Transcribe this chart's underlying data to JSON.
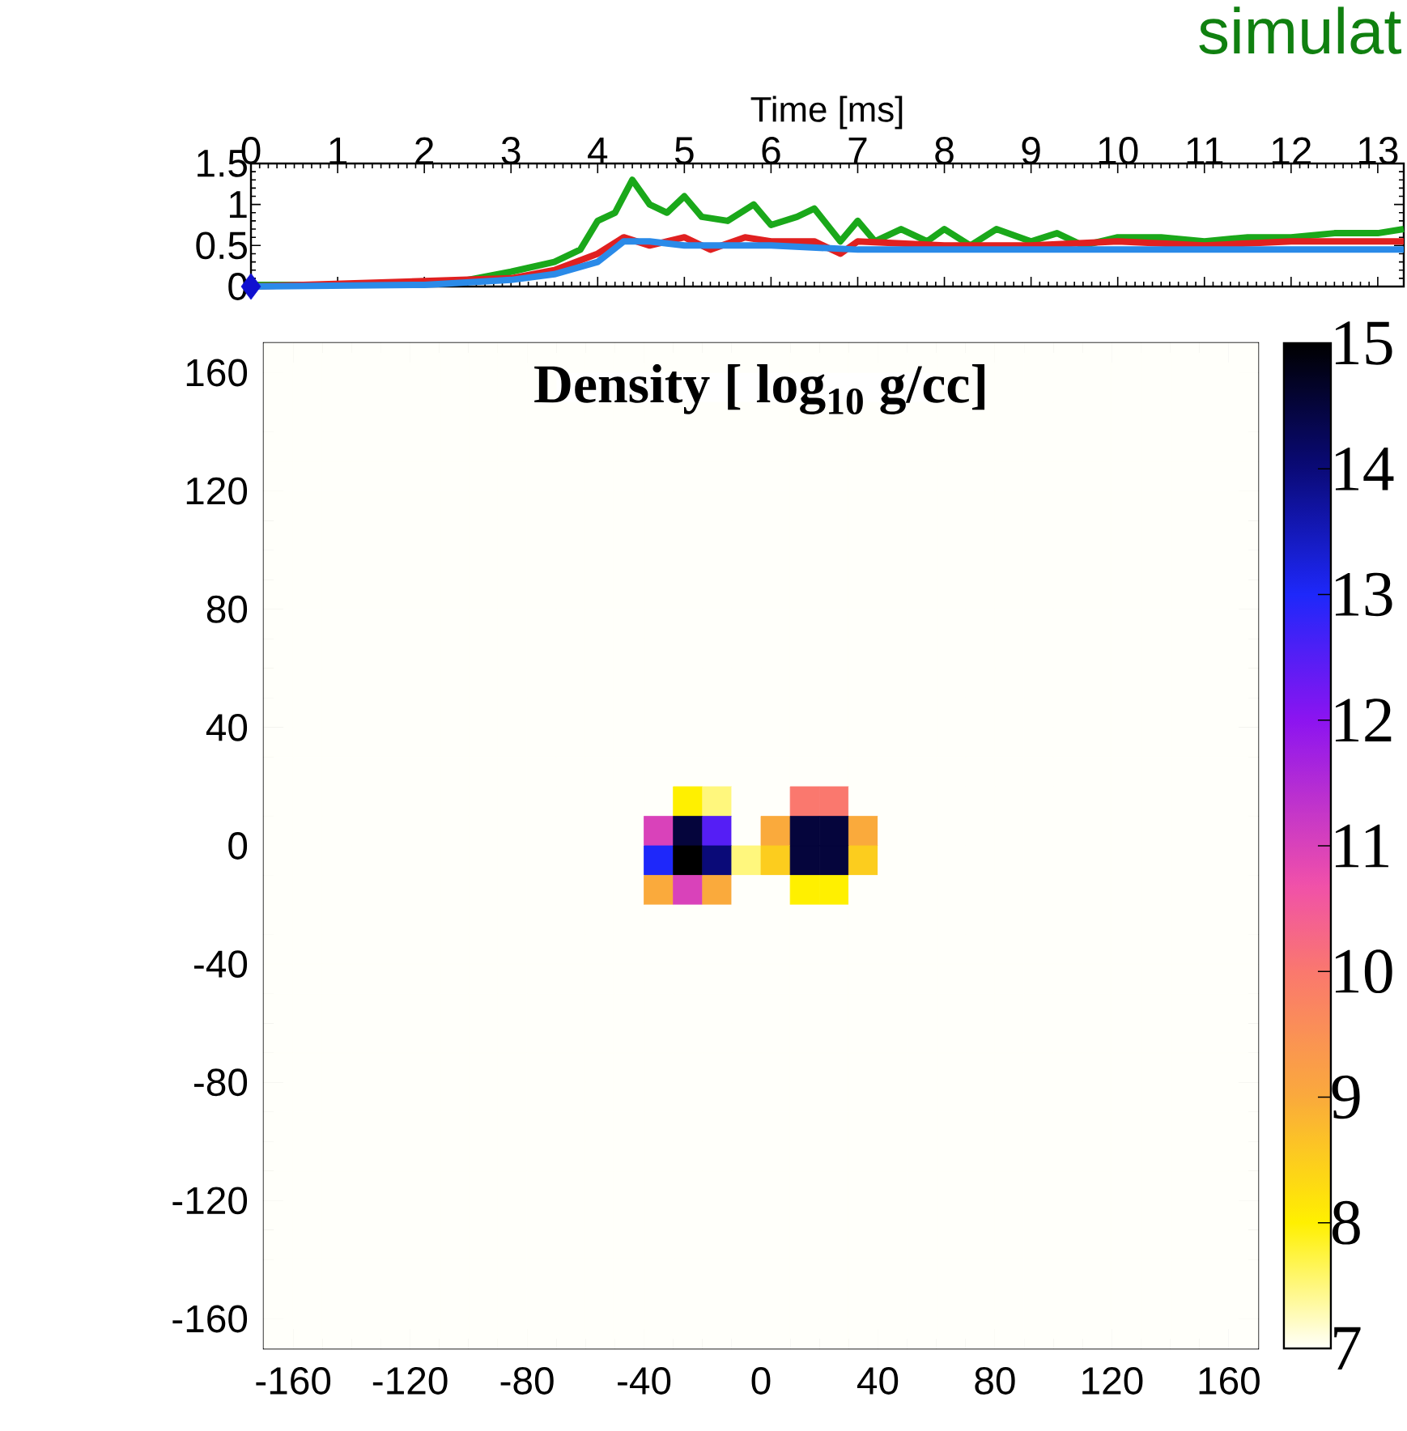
{
  "chart_data": [
    {
      "type": "line",
      "xlabel": "Time [ms]",
      "xlim": [
        0,
        13.3
      ],
      "xticks": [
        0,
        1,
        2,
        3,
        4,
        5,
        6,
        7,
        8,
        9,
        10,
        11,
        12,
        13
      ],
      "ylim": [
        0,
        1.5
      ],
      "yticks": [
        0,
        0.5,
        1,
        1.5
      ],
      "annotations": [
        "simulat"
      ],
      "series": [
        {
          "color": "#1aa81a",
          "x": [
            0,
            1,
            2,
            2.5,
            3,
            3.5,
            3.8,
            4.0,
            4.2,
            4.4,
            4.6,
            4.8,
            5.0,
            5.2,
            5.5,
            5.8,
            6.0,
            6.3,
            6.5,
            6.8,
            7.0,
            7.2,
            7.5,
            7.8,
            8.0,
            8.3,
            8.6,
            9.0,
            9.3,
            9.6,
            10,
            10.5,
            11,
            11.5,
            12,
            12.5,
            13,
            13.3
          ],
          "values": [
            0.02,
            0.02,
            0.04,
            0.08,
            0.18,
            0.3,
            0.45,
            0.8,
            0.9,
            1.3,
            1.0,
            0.9,
            1.1,
            0.85,
            0.8,
            1.0,
            0.75,
            0.85,
            0.95,
            0.55,
            0.8,
            0.55,
            0.7,
            0.55,
            0.7,
            0.5,
            0.7,
            0.55,
            0.65,
            0.5,
            0.6,
            0.6,
            0.55,
            0.6,
            0.6,
            0.65,
            0.65,
            0.7
          ]
        },
        {
          "color": "#e02020",
          "x": [
            0,
            2,
            3,
            3.5,
            4,
            4.3,
            4.6,
            5,
            5.3,
            5.7,
            6,
            6.5,
            6.8,
            7,
            8,
            9,
            10,
            11,
            12,
            13,
            13.3
          ],
          "values": [
            0,
            null,
            0.1,
            0.2,
            0.4,
            0.6,
            0.5,
            0.6,
            0.45,
            0.6,
            0.55,
            0.55,
            0.4,
            0.55,
            0.5,
            0.5,
            0.55,
            0.5,
            0.55,
            0.55,
            0.55
          ]
        },
        {
          "color": "#2a8ae8",
          "x": [
            0,
            2,
            3,
            3.5,
            4,
            4.3,
            4.6,
            5,
            6,
            7,
            8,
            9,
            10,
            11,
            12,
            13,
            13.3
          ],
          "values": [
            0,
            0.02,
            0.08,
            0.15,
            0.3,
            0.55,
            0.55,
            0.5,
            0.5,
            0.45,
            0.45,
            0.45,
            0.45,
            0.45,
            0.45,
            0.45,
            0.45
          ]
        },
        {
          "type": "scatter",
          "marker": "diamond",
          "color": "#1010d0",
          "x": [
            0
          ],
          "values": [
            0
          ]
        }
      ]
    },
    {
      "type": "heatmap",
      "title": "Density [ log$_{10}$ g/cc]",
      "xlim": [
        -170,
        170
      ],
      "ylim": [
        -170,
        170
      ],
      "xticks": [
        -160,
        -120,
        -80,
        -40,
        0,
        40,
        80,
        120,
        160
      ],
      "yticks": [
        -160,
        -120,
        -80,
        -40,
        0,
        40,
        80,
        120,
        160
      ],
      "clim": [
        7,
        15
      ],
      "cticks": [
        7,
        8,
        9,
        10,
        11,
        12,
        13,
        14,
        15
      ],
      "x": [
        -165,
        -155,
        -145,
        -135,
        -125,
        -115,
        -105,
        -95,
        -85,
        -75,
        -65,
        -55,
        -45,
        -35,
        -25,
        -15,
        -5,
        5,
        15,
        25,
        35,
        45,
        55,
        65,
        75,
        85,
        95,
        105,
        115,
        125,
        135,
        145,
        155,
        165
      ],
      "y": [
        165,
        155,
        145,
        135,
        125,
        115,
        105,
        95,
        85,
        75,
        65,
        55,
        45,
        35,
        25,
        15,
        5,
        -5,
        -15,
        -25,
        -35,
        -45,
        -55,
        -65,
        -75,
        -85,
        -95,
        -105,
        -115,
        -125,
        -135,
        -145,
        -155,
        -165
      ],
      "cells": [
        [
          7,
          7,
          7,
          7,
          7,
          7,
          7,
          7,
          7,
          7,
          7,
          7,
          7,
          7,
          7,
          7,
          7,
          7,
          7,
          7,
          7,
          7,
          7,
          7,
          7,
          7,
          7,
          7,
          7,
          7,
          7,
          7,
          7,
          7
        ],
        [
          7,
          7,
          7,
          7,
          7,
          7,
          7,
          7,
          7,
          7,
          null,
          null,
          null,
          null,
          null,
          null,
          null,
          null,
          null,
          null,
          null,
          null,
          null,
          7,
          7,
          7,
          7,
          7,
          7,
          7,
          7,
          7,
          7,
          7
        ],
        [
          7,
          7,
          7,
          7,
          7,
          7,
          7,
          7,
          7,
          7,
          7,
          7,
          7,
          7,
          7,
          7,
          7,
          7,
          7,
          7,
          7,
          7,
          7,
          7,
          7,
          7,
          7,
          7,
          7,
          7,
          7,
          7,
          7,
          7
        ],
        [
          7,
          7,
          7,
          7,
          7,
          7,
          7,
          7,
          7,
          7,
          7,
          7,
          7,
          7,
          7,
          7,
          7,
          7,
          7,
          7,
          7,
          7,
          7,
          7,
          7,
          7,
          7,
          7,
          7,
          7,
          7,
          7,
          7,
          7
        ],
        [
          7,
          7,
          7,
          7,
          7,
          7,
          7,
          7,
          7,
          7,
          7,
          7,
          7,
          7,
          7,
          7,
          7,
          7,
          7,
          7,
          7,
          7,
          7,
          7,
          7,
          7,
          7,
          7,
          7,
          7,
          7,
          7,
          7,
          7
        ],
        [
          7,
          7,
          7,
          7,
          7,
          7,
          7,
          7,
          7,
          7,
          7,
          7,
          7,
          7,
          7,
          7,
          7,
          7,
          7,
          7,
          7,
          7,
          7,
          7,
          7,
          7,
          7,
          7,
          7,
          7,
          7,
          7,
          7,
          7
        ],
        [
          7,
          7,
          7,
          7,
          7,
          7,
          7,
          7,
          7,
          7,
          7,
          7,
          7,
          7,
          7,
          7,
          7,
          7,
          7,
          7,
          7,
          7,
          7,
          7,
          7,
          7,
          7,
          7,
          7,
          7,
          7,
          7,
          7,
          7
        ],
        [
          7,
          7,
          7,
          7,
          7,
          7,
          7,
          7,
          7,
          7,
          7,
          7,
          7,
          7,
          7,
          7,
          7,
          7,
          7,
          7,
          7,
          7,
          7,
          7,
          7,
          7,
          7,
          7,
          7,
          7,
          7,
          7,
          7,
          7
        ],
        [
          7,
          7,
          7,
          7,
          7,
          7,
          7,
          7,
          7,
          7,
          7,
          7,
          7,
          7,
          7,
          7,
          7,
          7,
          7,
          7,
          7,
          7,
          7,
          7,
          7,
          7,
          7,
          7,
          7,
          7,
          7,
          7,
          7,
          7
        ],
        [
          7,
          7,
          7,
          7,
          7,
          7,
          7,
          7,
          7,
          7,
          7,
          7,
          7,
          7,
          7,
          7,
          7,
          7,
          7,
          7,
          7,
          7,
          7,
          7,
          7,
          7,
          7,
          7,
          7,
          7,
          7,
          7,
          7,
          7
        ],
        [
          7,
          7,
          7,
          7,
          7,
          7,
          7,
          7,
          7,
          7,
          7,
          7,
          7,
          7,
          7,
          7,
          7,
          7,
          7,
          7,
          7,
          7,
          7,
          7,
          7,
          7,
          7,
          7,
          7,
          7,
          7,
          7,
          7,
          7
        ],
        [
          7,
          7,
          7,
          7,
          7,
          7,
          7,
          7,
          7,
          7,
          7,
          7,
          7,
          7,
          7,
          7,
          7,
          7,
          7,
          7,
          7,
          7,
          7,
          7,
          7,
          7,
          7,
          7,
          7,
          7,
          7,
          7,
          7,
          7
        ],
        [
          7,
          7,
          7,
          7,
          7,
          7,
          7,
          7,
          7,
          7,
          7,
          7,
          7,
          7,
          7,
          7,
          7,
          7,
          7,
          7,
          7,
          7,
          7,
          7,
          7,
          7,
          7,
          7,
          7,
          7,
          7,
          7,
          7,
          7
        ],
        [
          7,
          7,
          7,
          7,
          7,
          7,
          7,
          7,
          7,
          7,
          7,
          7,
          7,
          7,
          7,
          7,
          7,
          7,
          7,
          7,
          7,
          7,
          7,
          7,
          7,
          7,
          7,
          7,
          7,
          7,
          7,
          7,
          7,
          7
        ],
        [
          7,
          7,
          7,
          7,
          7,
          7,
          7,
          7,
          7,
          7,
          7,
          7,
          7,
          7,
          7,
          7,
          7,
          7,
          7,
          7,
          7,
          7,
          7,
          7,
          7,
          7,
          7,
          7,
          7,
          7,
          7,
          7,
          7,
          7
        ],
        [
          7,
          7,
          7,
          7,
          7,
          7,
          7,
          7,
          7,
          7,
          7,
          7,
          7,
          7,
          8,
          7.5,
          7,
          7,
          10,
          10,
          7,
          7,
          7,
          7,
          7,
          7,
          7,
          7,
          7,
          7,
          7,
          7,
          7,
          7
        ],
        [
          7,
          7,
          7,
          7,
          7,
          7,
          7,
          7,
          7,
          7,
          7,
          7,
          7,
          11,
          14.5,
          12.5,
          7,
          9,
          14.5,
          14.5,
          9,
          7,
          7,
          7,
          7,
          7,
          7,
          7,
          7,
          7,
          7,
          7,
          7,
          7
        ],
        [
          7,
          7,
          7,
          7,
          7,
          7,
          7,
          7,
          7,
          7,
          7,
          7,
          7,
          13,
          15,
          14,
          7.5,
          8.5,
          14.5,
          14.5,
          8.5,
          7,
          7,
          7,
          7,
          7,
          7,
          7,
          7,
          7,
          7,
          7,
          7,
          7
        ],
        [
          7,
          7,
          7,
          7,
          7,
          7,
          7,
          7,
          7,
          7,
          7,
          7,
          7,
          9,
          11,
          9,
          7,
          7,
          8,
          8,
          7,
          7,
          7,
          7,
          7,
          7,
          7,
          7,
          7,
          7,
          7,
          7,
          7,
          7
        ],
        [
          7,
          7,
          7,
          7,
          7,
          7,
          7,
          7,
          7,
          7,
          7,
          7,
          7,
          7,
          7,
          7,
          7,
          7,
          7,
          7,
          7,
          7,
          7,
          7,
          7,
          7,
          7,
          7,
          7,
          7,
          7,
          7,
          7,
          7
        ],
        [
          7,
          7,
          7,
          7,
          7,
          7,
          7,
          7,
          7,
          7,
          7,
          7,
          7,
          7,
          7,
          7,
          7,
          7,
          7,
          7,
          7,
          7,
          7,
          7,
          7,
          7,
          7,
          7,
          7,
          7,
          7,
          7,
          7,
          7
        ],
        [
          7,
          7,
          7,
          7,
          7,
          7,
          7,
          7,
          7,
          7,
          7,
          7,
          7,
          7,
          7,
          7,
          7,
          7,
          7,
          7,
          7,
          7,
          7,
          7,
          7,
          7,
          7,
          7,
          7,
          7,
          7,
          7,
          7,
          7
        ],
        [
          7,
          7,
          7,
          7,
          7,
          7,
          7,
          7,
          7,
          7,
          7,
          7,
          7,
          7,
          7,
          7,
          7,
          7,
          7,
          7,
          7,
          7,
          7,
          7,
          7,
          7,
          7,
          7,
          7,
          7,
          7,
          7,
          7,
          7
        ],
        [
          7,
          7,
          7,
          7,
          7,
          7,
          7,
          7,
          7,
          7,
          7,
          7,
          7,
          7,
          7,
          7,
          7,
          7,
          7,
          7,
          7,
          7,
          7,
          7,
          7,
          7,
          7,
          7,
          7,
          7,
          7,
          7,
          7,
          7
        ],
        [
          7,
          7,
          7,
          7,
          7,
          7,
          7,
          7,
          7,
          7,
          7,
          7,
          7,
          7,
          7,
          7,
          7,
          7,
          7,
          7,
          7,
          7,
          7,
          7,
          7,
          7,
          7,
          7,
          7,
          7,
          7,
          7,
          7,
          7
        ],
        [
          7,
          7,
          7,
          7,
          7,
          7,
          7,
          7,
          7,
          7,
          7,
          7,
          7,
          7,
          7,
          7,
          7,
          7,
          7,
          7,
          7,
          7,
          7,
          7,
          7,
          7,
          7,
          7,
          7,
          7,
          7,
          7,
          7,
          7
        ],
        [
          7,
          7,
          7,
          7,
          7,
          7,
          7,
          7,
          7,
          7,
          7,
          7,
          7,
          7,
          7,
          7,
          7,
          7,
          7,
          7,
          7,
          7,
          7,
          7,
          7,
          7,
          7,
          7,
          7,
          7,
          7,
          7,
          7,
          7
        ],
        [
          7,
          7,
          7,
          7,
          7,
          7,
          7,
          7,
          7,
          7,
          7,
          7,
          7,
          7,
          7,
          7,
          7,
          7,
          7,
          7,
          7,
          7,
          7,
          7,
          7,
          7,
          7,
          7,
          7,
          7,
          7,
          7,
          7,
          7
        ],
        [
          7,
          7,
          7,
          7,
          7,
          7,
          7,
          7,
          7,
          7,
          7,
          7,
          7,
          7,
          7,
          7,
          7,
          7,
          7,
          7,
          7,
          7,
          7,
          7,
          7,
          7,
          7,
          7,
          7,
          7,
          7,
          7,
          7,
          7
        ],
        [
          7,
          7,
          7,
          7,
          7,
          7,
          7,
          7,
          7,
          7,
          7,
          7,
          7,
          7,
          7,
          7,
          7,
          7,
          7,
          7,
          7,
          7,
          7,
          7,
          7,
          7,
          7,
          7,
          7,
          7,
          7,
          7,
          7,
          7
        ],
        [
          7,
          7,
          7,
          7,
          7,
          7,
          7,
          7,
          7,
          7,
          7,
          7,
          7,
          7,
          7,
          7,
          7,
          7,
          7,
          7,
          7,
          7,
          7,
          7,
          7,
          7,
          7,
          7,
          7,
          7,
          7,
          7,
          7,
          7
        ],
        [
          7,
          7,
          7,
          7,
          7,
          7,
          7,
          7,
          7,
          7,
          7,
          7,
          7,
          7,
          7,
          7,
          7,
          7,
          7,
          7,
          7,
          7,
          7,
          7,
          7,
          7,
          7,
          7,
          7,
          7,
          7,
          7,
          7,
          7
        ],
        [
          7,
          7,
          7,
          7,
          7,
          7,
          7,
          7,
          7,
          7,
          7,
          7,
          7,
          7,
          7,
          7,
          7,
          7,
          7,
          7,
          7,
          7,
          7,
          7,
          7,
          7,
          7,
          7,
          7,
          7,
          7,
          7,
          7,
          7
        ],
        [
          7,
          7,
          7,
          7,
          7,
          7,
          7,
          7,
          7,
          7,
          7,
          7,
          7,
          7,
          7,
          7,
          7,
          7,
          7,
          7,
          7,
          7,
          7,
          7,
          7,
          7,
          7,
          7,
          7,
          7,
          7,
          7,
          7,
          7
        ]
      ]
    }
  ]
}
